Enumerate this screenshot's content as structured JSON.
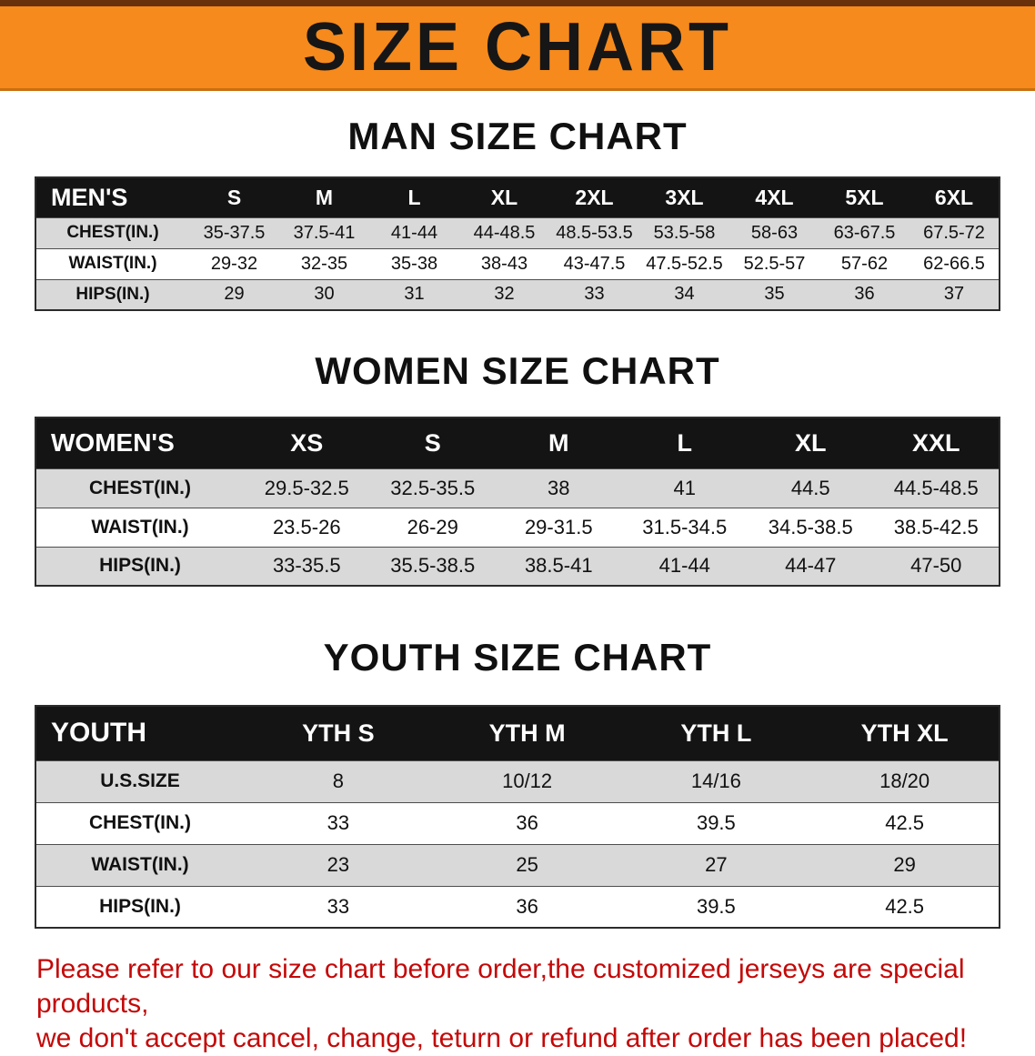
{
  "banner": {
    "title": "SIZE CHART"
  },
  "colors": {
    "banner_bg": "#f68a1c",
    "header_row_bg": "#141414",
    "stripe_gray": "#d9d9d9",
    "footer_red": "#c40808"
  },
  "sections": [
    {
      "heading": "MAN SIZE CHART",
      "table": {
        "corner": "MEN'S",
        "columns": [
          "S",
          "M",
          "L",
          "XL",
          "2XL",
          "3XL",
          "4XL",
          "5XL",
          "6XL"
        ],
        "rows": [
          {
            "label": "CHEST(IN.)",
            "values": [
              "35-37.5",
              "37.5-41",
              "41-44",
              "44-48.5",
              "48.5-53.5",
              "53.5-58",
              "58-63",
              "63-67.5",
              "67.5-72"
            ]
          },
          {
            "label": "WAIST(IN.)",
            "values": [
              "29-32",
              "32-35",
              "35-38",
              "38-43",
              "43-47.5",
              "47.5-52.5",
              "52.5-57",
              "57-62",
              "62-66.5"
            ]
          },
          {
            "label": "HIPS(IN.)",
            "values": [
              "29",
              "30",
              "31",
              "32",
              "33",
              "34",
              "35",
              "36",
              "37"
            ]
          }
        ]
      }
    },
    {
      "heading": "WOMEN SIZE CHART",
      "table": {
        "corner": "WOMEN'S",
        "columns": [
          "XS",
          "S",
          "M",
          "L",
          "XL",
          "XXL"
        ],
        "rows": [
          {
            "label": "CHEST(IN.)",
            "values": [
              "29.5-32.5",
              "32.5-35.5",
              "38",
              "41",
              "44.5",
              "44.5-48.5"
            ]
          },
          {
            "label": "WAIST(IN.)",
            "values": [
              "23.5-26",
              "26-29",
              "29-31.5",
              "31.5-34.5",
              "34.5-38.5",
              "38.5-42.5"
            ]
          },
          {
            "label": "HIPS(IN.)",
            "values": [
              "33-35.5",
              "35.5-38.5",
              "38.5-41",
              "41-44",
              "44-47",
              "47-50"
            ]
          }
        ]
      }
    },
    {
      "heading": "YOUTH SIZE CHART",
      "table": {
        "corner": "YOUTH",
        "columns": [
          "YTH S",
          "YTH M",
          "YTH L",
          "YTH XL"
        ],
        "rows": [
          {
            "label": "U.S.SIZE",
            "values": [
              "8",
              "10/12",
              "14/16",
              "18/20"
            ]
          },
          {
            "label": "CHEST(IN.)",
            "values": [
              "33",
              "36",
              "39.5",
              "42.5"
            ]
          },
          {
            "label": "WAIST(IN.)",
            "values": [
              "23",
              "25",
              "27",
              "29"
            ]
          },
          {
            "label": "HIPS(IN.)",
            "values": [
              "33",
              "36",
              "39.5",
              "42.5"
            ]
          }
        ]
      }
    }
  ],
  "footer": {
    "line1": "Please refer to our size chart before order,the customized jerseys are special products,",
    "line2": "we don't accept cancel, change, teturn or refund after order has been placed!"
  }
}
